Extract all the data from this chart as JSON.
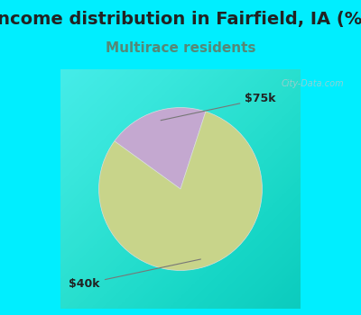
{
  "title": "Income distribution in Fairfield, IA (%)",
  "subtitle": "Multirace residents",
  "title_color": "#222222",
  "subtitle_color": "#558877",
  "background_color": "#00eeff",
  "chart_bg_top_left": "#e8f5e8",
  "chart_bg_bottom_right": "#d8eee0",
  "slices": [
    {
      "label": "$75k",
      "value": 20,
      "color": "#c4a8d0"
    },
    {
      "label": "$40k",
      "value": 80,
      "color": "#c8d48a"
    }
  ],
  "watermark": "City-Data.com",
  "watermark_color": "#aacccc",
  "label_fontsize": 9,
  "title_fontsize": 14,
  "subtitle_fontsize": 11,
  "startangle": 72
}
